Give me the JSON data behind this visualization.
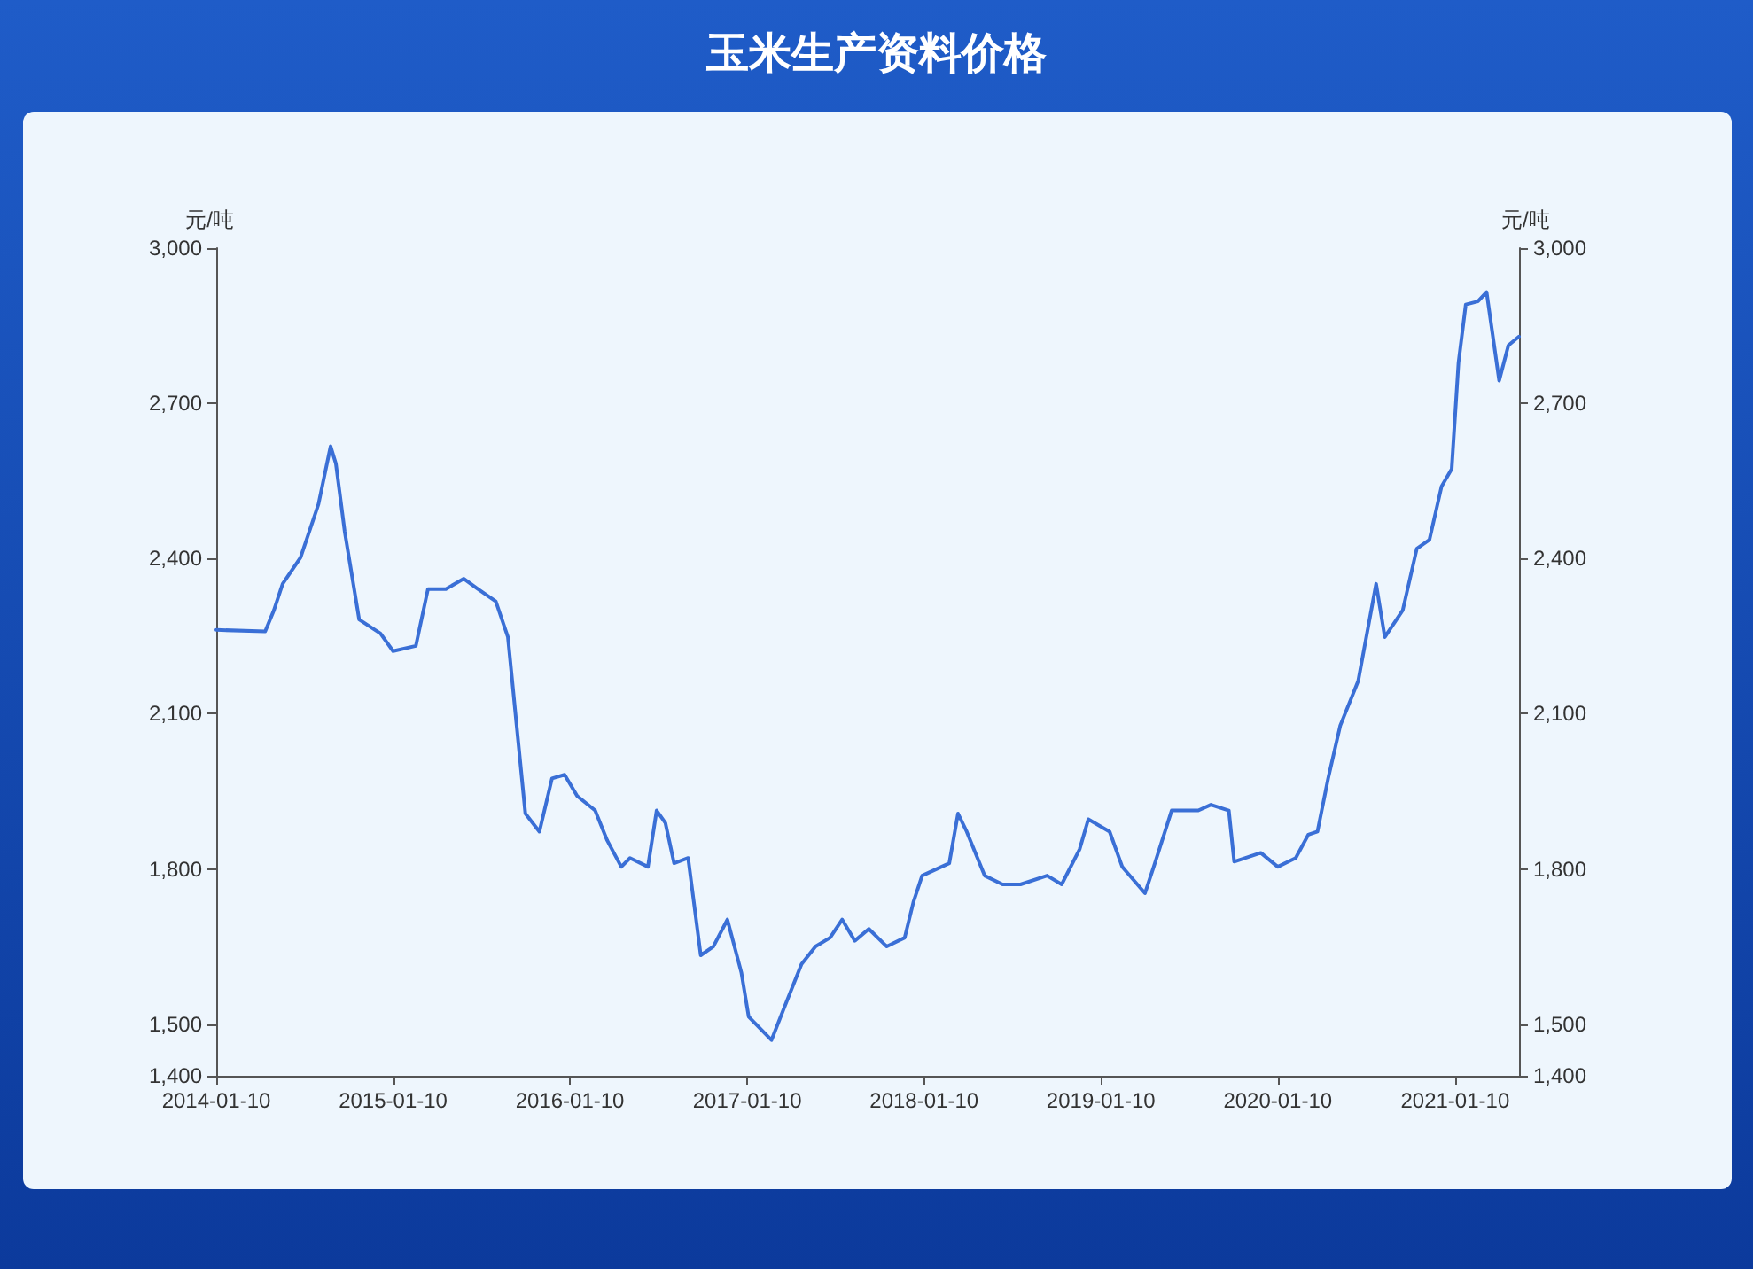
{
  "chart_data": {
    "type": "line",
    "title": "玉米生产资料价格",
    "ylabel": "元/吨",
    "y2label": "元/吨",
    "x": [
      "2014-01-10",
      "2014-04-21",
      "2014-05-09",
      "2014-05-27",
      "2014-07-03",
      "2014-08-09",
      "2014-09-03",
      "2014-09-14",
      "2014-10-02",
      "2014-11-01",
      "2014-12-15",
      "2015-01-10",
      "2015-02-26",
      "2015-03-23",
      "2015-04-29",
      "2015-06-05",
      "2015-07-04",
      "2015-08-10",
      "2015-09-04",
      "2015-09-22",
      "2015-10-10",
      "2015-11-08",
      "2015-12-04",
      "2015-12-30",
      "2016-01-25",
      "2016-03-02",
      "2016-03-27",
      "2016-04-25",
      "2016-05-13",
      "2016-06-19",
      "2016-07-07",
      "2016-07-25",
      "2016-08-12",
      "2016-09-10",
      "2016-10-06",
      "2016-11-01",
      "2016-11-30",
      "2016-12-29",
      "2017-01-13",
      "2017-03-01",
      "2017-03-27",
      "2017-05-02",
      "2017-05-31",
      "2017-06-30",
      "2017-07-25",
      "2017-08-20",
      "2017-09-18",
      "2017-10-25",
      "2017-12-01",
      "2017-12-19",
      "2018-01-06",
      "2018-03-03",
      "2018-03-21",
      "2018-04-08",
      "2018-05-15",
      "2018-06-21",
      "2018-07-28",
      "2018-09-21",
      "2018-10-21",
      "2018-11-27",
      "2018-12-15",
      "2019-01-28",
      "2019-02-23",
      "2019-04-11",
      "2019-04-29",
      "2019-06-05",
      "2019-07-30",
      "2019-08-25",
      "2019-10-01",
      "2019-10-12",
      "2019-12-06",
      "2020-01-10",
      "2020-02-16",
      "2020-03-13",
      "2020-04-01",
      "2020-04-23",
      "2020-05-18",
      "2020-06-24",
      "2020-07-31",
      "2020-08-18",
      "2020-09-24",
      "2020-10-23",
      "2020-11-18",
      "2020-12-13",
      "2021-01-03",
      "2021-01-17",
      "2021-02-01",
      "2021-02-26",
      "2021-03-16",
      "2021-04-11",
      "2021-04-30",
      "2021-05-22"
    ],
    "series": [
      {
        "color": "#3a6fd6",
        "values": [
          2262,
          2259,
          2300,
          2351,
          2402,
          2505,
          2617,
          2583,
          2453,
          2282,
          2255,
          2221,
          2231,
          2341,
          2341,
          2361,
          2341,
          2317,
          2248,
          2077,
          1907,
          1872,
          1975,
          1982,
          1941,
          1913,
          1855,
          1804,
          1821,
          1804,
          1913,
          1889,
          1811,
          1821,
          1633,
          1650,
          1702,
          1599,
          1514,
          1469,
          1531,
          1616,
          1650,
          1667,
          1702,
          1661,
          1684,
          1650,
          1667,
          1736,
          1787,
          1811,
          1907,
          1872,
          1787,
          1770,
          1770,
          1787,
          1770,
          1838,
          1896,
          1872,
          1804,
          1753,
          1804,
          1913,
          1913,
          1924,
          1913,
          1814,
          1831,
          1804,
          1821,
          1866,
          1872,
          1975,
          2077,
          2163,
          2351,
          2248,
          2300,
          2419,
          2436,
          2539,
          2573,
          2778,
          2891,
          2897,
          2915,
          2744,
          2812,
          2829
        ]
      }
    ],
    "xlim": [
      "2014-01-10",
      "2021-05-22"
    ],
    "xticks": [
      "2014-01-10",
      "2015-01-10",
      "2016-01-10",
      "2017-01-10",
      "2018-01-10",
      "2019-01-10",
      "2020-01-10",
      "2021-01-10"
    ],
    "ylim": [
      1400,
      3000
    ],
    "yticks": [
      {
        "value": 1400,
        "label": "1,400"
      },
      {
        "value": 1500,
        "label": "1,500"
      },
      {
        "value": 1800,
        "label": "1,800"
      },
      {
        "value": 2100,
        "label": "2,100"
      },
      {
        "value": 2400,
        "label": "2,400"
      },
      {
        "value": 2700,
        "label": "2,700"
      },
      {
        "value": 3000,
        "label": "3,000"
      }
    ],
    "y2lim": [
      1400,
      3000
    ],
    "y2ticks": [
      {
        "value": 1400,
        "label": "1,400"
      },
      {
        "value": 1500,
        "label": "1,500"
      },
      {
        "value": 1800,
        "label": "1,800"
      },
      {
        "value": 2100,
        "label": "2,100"
      },
      {
        "value": 2400,
        "label": "2,400"
      },
      {
        "value": 2700,
        "label": "2,700"
      },
      {
        "value": 3000,
        "label": "3,000"
      }
    ],
    "grid": false
  }
}
